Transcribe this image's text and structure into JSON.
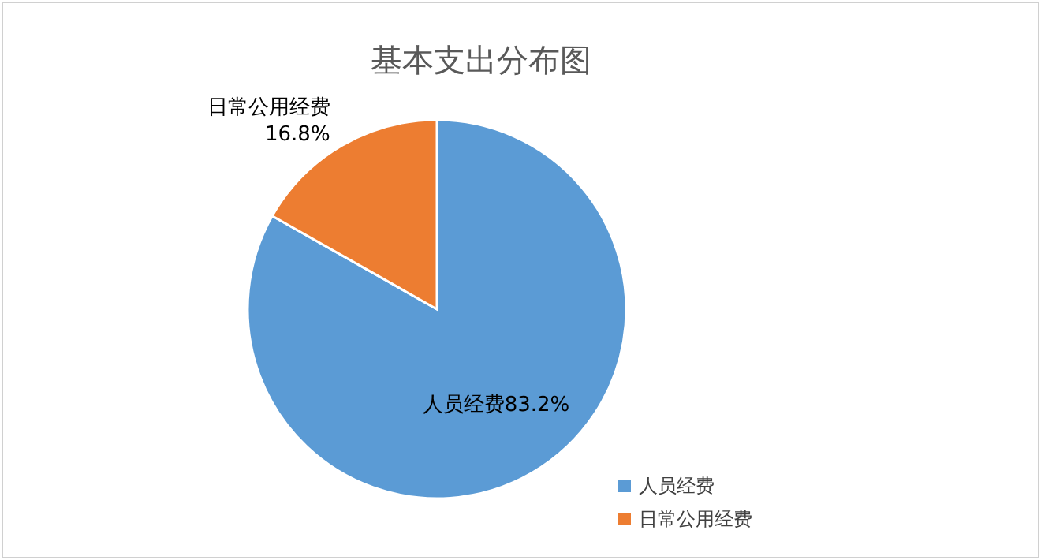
{
  "chart_data": {
    "type": "pie",
    "title": "基本支出分布图",
    "categories": [
      "人员经费",
      "日常公用经费"
    ],
    "values": [
      83.2,
      16.8
    ],
    "colors": [
      "#5b9bd5",
      "#ed7d31"
    ],
    "value_labels": [
      "人员经费83.2%",
      "日常公用经费\n16.8%"
    ],
    "legend": "bottom right"
  }
}
